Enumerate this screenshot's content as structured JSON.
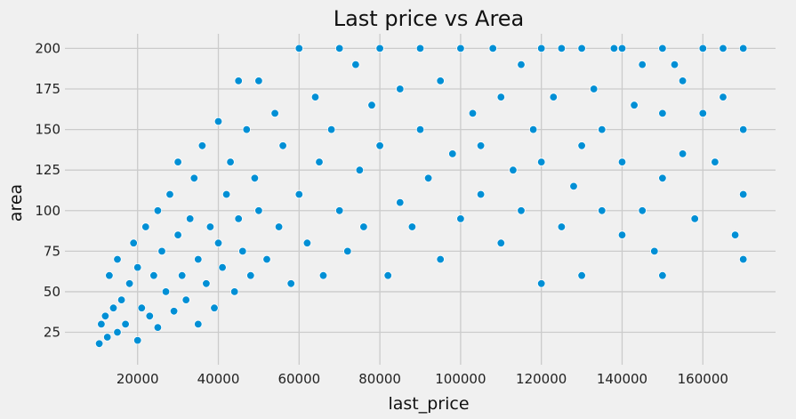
{
  "chart_data": {
    "type": "scatter",
    "title": "Last price vs Area",
    "xlabel": "last_price",
    "ylabel": "area",
    "xlim": [
      2000,
      178000
    ],
    "ylim": [
      5,
      209
    ],
    "xticks": [
      20000,
      40000,
      60000,
      80000,
      100000,
      120000,
      140000,
      160000
    ],
    "xtick_labels": [
      "20000",
      "40000",
      "60000",
      "80000",
      "100000",
      "120000",
      "140000",
      "160000"
    ],
    "yticks": [
      25,
      50,
      75,
      100,
      125,
      150,
      175,
      200
    ],
    "ytick_labels": [
      "25",
      "50",
      "75",
      "100",
      "125",
      "150",
      "175",
      "200"
    ],
    "grid": true,
    "legend": "none",
    "colors": {
      "marker": "#008fd5",
      "marker_edge": "#ffffff",
      "background": "#f0f0f0",
      "grid": "#cbcbcb"
    },
    "series": [
      {
        "x": [
          10500,
          11000,
          12000,
          12500,
          13000,
          14000,
          15000,
          15000,
          16000,
          17000,
          18000,
          19000,
          20000,
          20000,
          21000,
          22000,
          23000,
          24000,
          25000,
          25000,
          26000,
          27000,
          28000,
          29000,
          30000,
          30000,
          31000,
          32000,
          33000,
          34000,
          35000,
          35000,
          36000,
          37000,
          38000,
          39000,
          40000,
          40000,
          41000,
          42000,
          43000,
          44000,
          45000,
          45000,
          46000,
          47000,
          48000,
          49000,
          50000,
          50000,
          52000,
          54000,
          55000,
          56000,
          58000,
          60000,
          60000,
          62000,
          64000,
          65000,
          66000,
          68000,
          70000,
          70000,
          72000,
          74000,
          75000,
          76000,
          78000,
          80000,
          80000,
          82000,
          85000,
          85000,
          88000,
          90000,
          90000,
          92000,
          95000,
          95000,
          98000,
          100000,
          100000,
          103000,
          105000,
          105000,
          108000,
          110000,
          110000,
          113000,
          115000,
          115000,
          118000,
          120000,
          120000,
          120000,
          123000,
          125000,
          125000,
          128000,
          130000,
          130000,
          130000,
          133000,
          135000,
          135000,
          138000,
          140000,
          140000,
          140000,
          143000,
          145000,
          145000,
          148000,
          150000,
          150000,
          150000,
          150000,
          153000,
          155000,
          155000,
          158000,
          160000,
          160000,
          163000,
          165000,
          165000,
          168000,
          170000,
          170000,
          170000,
          170000
        ],
        "y": [
          18,
          30,
          35,
          22,
          60,
          40,
          25,
          70,
          45,
          30,
          55,
          80,
          20,
          65,
          40,
          90,
          35,
          60,
          100,
          28,
          75,
          50,
          110,
          38,
          85,
          130,
          60,
          45,
          95,
          120,
          30,
          70,
          140,
          55,
          90,
          40,
          155,
          80,
          65,
          110,
          130,
          50,
          180,
          95,
          75,
          150,
          60,
          120,
          100,
          180,
          70,
          160,
          90,
          140,
          55,
          200,
          110,
          80,
          170,
          130,
          60,
          150,
          200,
          100,
          75,
          190,
          125,
          90,
          165,
          200,
          140,
          60,
          175,
          105,
          90,
          200,
          150,
          120,
          180,
          70,
          135,
          200,
          95,
          160,
          110,
          140,
          200,
          80,
          170,
          125,
          190,
          100,
          150,
          200,
          55,
          130,
          170,
          90,
          200,
          115,
          200,
          140,
          60,
          175,
          100,
          150,
          200,
          85,
          200,
          130,
          165,
          100,
          190,
          75,
          200,
          160,
          120,
          60,
          190,
          135,
          180,
          95,
          200,
          160,
          130,
          200,
          170,
          85,
          200,
          150,
          110,
          70
        ]
      }
    ]
  }
}
